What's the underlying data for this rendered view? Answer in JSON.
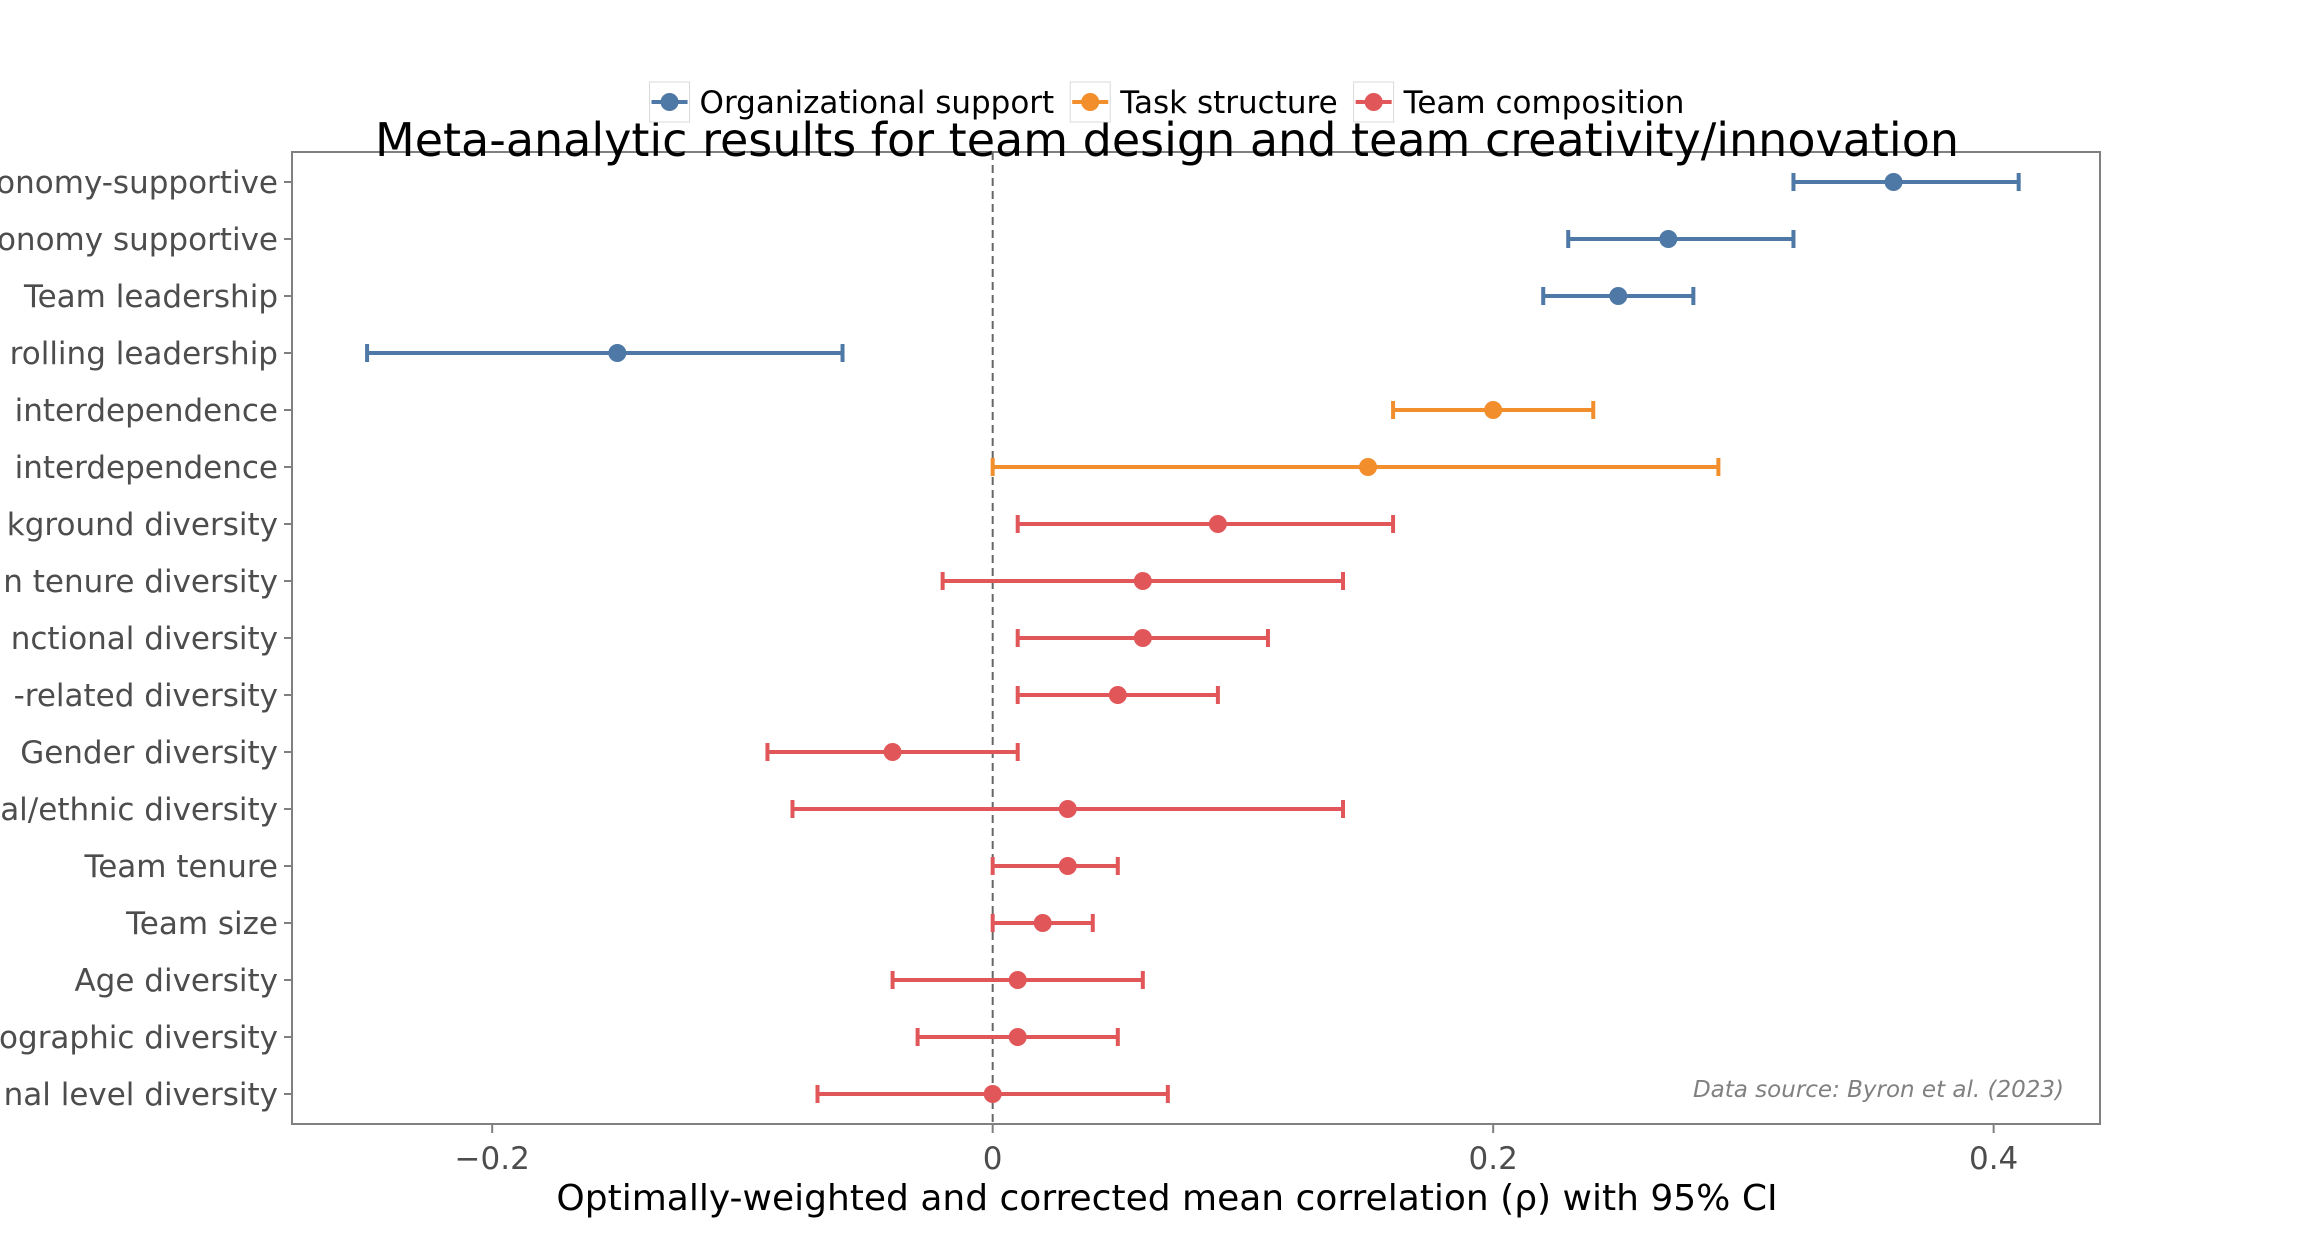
{
  "chart_data": {
    "type": "forest",
    "title": "Meta-analytic results for team design and team creativity/innovation",
    "xlabel": "Optimally-weighted and corrected mean correlation (ρ) with 95% CI",
    "xlim": [
      -0.28,
      0.4425
    ],
    "xticks": [
      -0.2,
      0,
      0.2,
      0.4
    ],
    "xtick_labels": [
      "−0.2",
      "0",
      "0.2",
      "0.4"
    ],
    "reference_line": 0,
    "grid": false,
    "legend_position": "top-center",
    "annotation": "Data source: Byron et al. (2023)",
    "groups": [
      {
        "name": "Organizational support",
        "color": "#4e79a7"
      },
      {
        "name": "Task structure",
        "color": "#f28e2b"
      },
      {
        "name": "Team composition",
        "color": "#e15759"
      }
    ],
    "rows": [
      {
        "label": "onomy-supportive",
        "group": 0,
        "estimate": 0.36,
        "lower": 0.32,
        "upper": 0.41
      },
      {
        "label": "onomy supportive",
        "group": 0,
        "estimate": 0.27,
        "lower": 0.23,
        "upper": 0.32
      },
      {
        "label": "Team leadership",
        "group": 0,
        "estimate": 0.25,
        "lower": 0.22,
        "upper": 0.28
      },
      {
        "label": "rolling leadership",
        "group": 0,
        "estimate": -0.15,
        "lower": -0.25,
        "upper": -0.06
      },
      {
        "label": "interdependence",
        "group": 1,
        "estimate": 0.2,
        "lower": 0.16,
        "upper": 0.24
      },
      {
        "label": "interdependence",
        "group": 1,
        "estimate": 0.15,
        "lower": 0.0,
        "upper": 0.29
      },
      {
        "label": "kground diversity",
        "group": 2,
        "estimate": 0.09,
        "lower": 0.01,
        "upper": 0.16
      },
      {
        "label": "n tenure diversity",
        "group": 2,
        "estimate": 0.06,
        "lower": -0.02,
        "upper": 0.14
      },
      {
        "label": "nctional diversity",
        "group": 2,
        "estimate": 0.06,
        "lower": 0.01,
        "upper": 0.11
      },
      {
        "label": "-related diversity",
        "group": 2,
        "estimate": 0.05,
        "lower": 0.01,
        "upper": 0.09
      },
      {
        "label": "Gender diversity",
        "group": 2,
        "estimate": -0.04,
        "lower": -0.09,
        "upper": 0.01
      },
      {
        "label": "al/ethnic diversity",
        "group": 2,
        "estimate": 0.03,
        "lower": -0.08,
        "upper": 0.14
      },
      {
        "label": "Team tenure",
        "group": 2,
        "estimate": 0.03,
        "lower": 0.0,
        "upper": 0.05
      },
      {
        "label": "Team size",
        "group": 2,
        "estimate": 0.02,
        "lower": 0.0,
        "upper": 0.04
      },
      {
        "label": "Age diversity",
        "group": 2,
        "estimate": 0.01,
        "lower": -0.04,
        "upper": 0.06
      },
      {
        "label": "ographic diversity",
        "group": 2,
        "estimate": 0.01,
        "lower": -0.03,
        "upper": 0.05
      },
      {
        "label": "nal level diversity",
        "group": 2,
        "estimate": 0.0,
        "lower": -0.07,
        "upper": 0.07
      }
    ]
  }
}
